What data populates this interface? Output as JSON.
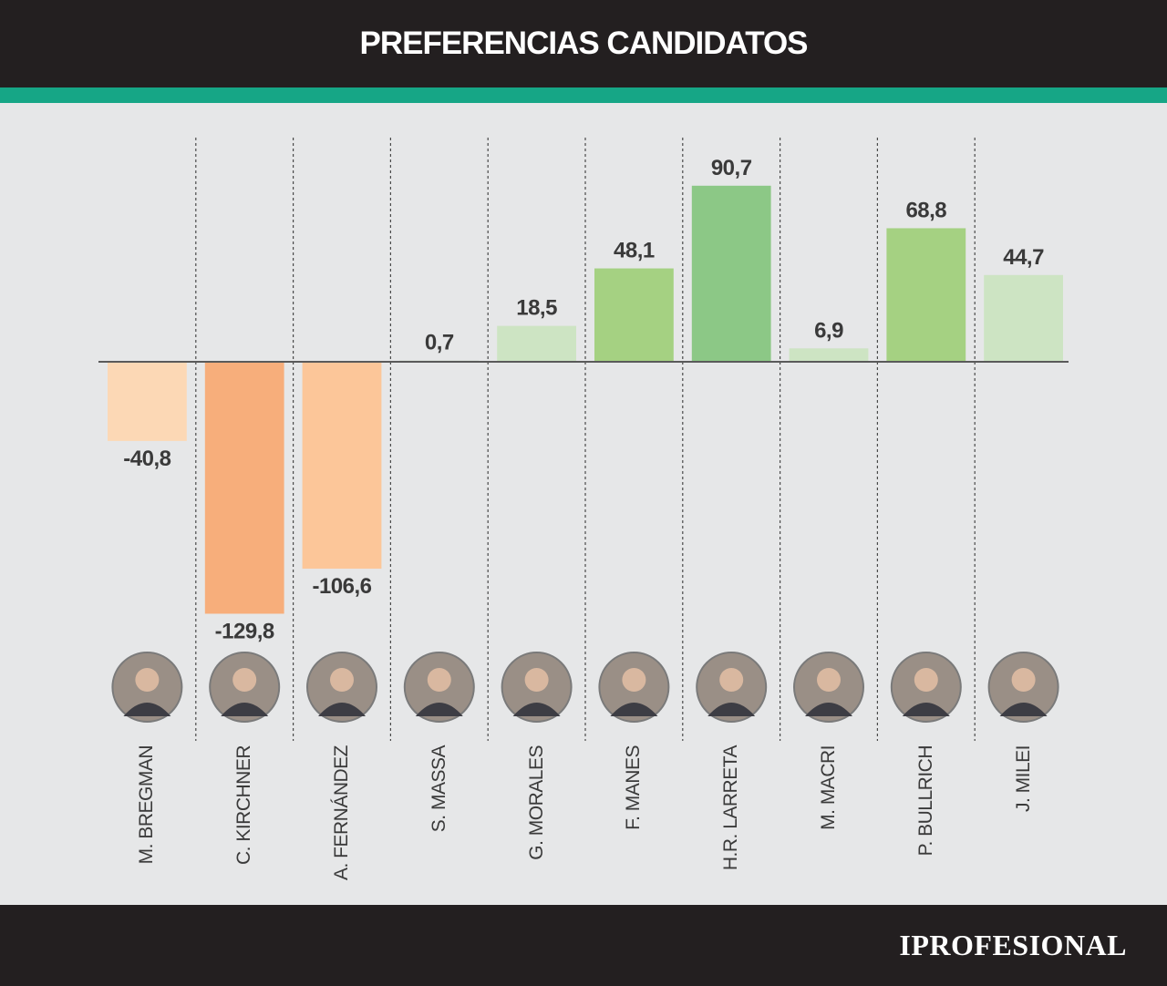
{
  "header": {
    "title": "PREFERENCIAS CANDIDATOS"
  },
  "footer": {
    "brand": "IPROFESIONAL"
  },
  "colors": {
    "header_bg": "#231f20",
    "accent": "#16a686",
    "background": "#e6e7e8",
    "negative_light": "#fcd8b5",
    "negative_mid": "#fcc699",
    "negative_strong": "#f7ae7b",
    "positive_faint": "#d1dccf",
    "positive_light": "#cde4c3",
    "positive_mid": "#a5d182",
    "positive_strong": "#8cc886"
  },
  "candidates": [
    {
      "name": "M. BREGMAN",
      "value": -40.8,
      "label": "-40,8",
      "color": "#fcd8b5",
      "photo_icon": "portrait-bregman-icon"
    },
    {
      "name": "C. KIRCHNER",
      "value": -129.8,
      "label": "-129,8",
      "color": "#f7ae7b",
      "photo_icon": "portrait-kirchner-icon"
    },
    {
      "name": "A. FERNÁNDEZ",
      "value": -106.6,
      "label": "-106,6",
      "color": "#fcc699",
      "photo_icon": "portrait-fernandez-icon"
    },
    {
      "name": "S. MASSA",
      "value": 0.7,
      "label": "0,7",
      "color": "#d1dccf",
      "photo_icon": "portrait-massa-icon"
    },
    {
      "name": "G. MORALES",
      "value": 18.5,
      "label": "18,5",
      "color": "#cde4c3",
      "photo_icon": "portrait-morales-icon"
    },
    {
      "name": "F. MANES",
      "value": 48.1,
      "label": "48,1",
      "color": "#a5d182",
      "photo_icon": "portrait-manes-icon"
    },
    {
      "name": "H.R. LARRETA",
      "value": 90.7,
      "label": "90,7",
      "color": "#8cc886",
      "photo_icon": "portrait-larreta-icon"
    },
    {
      "name": "M. MACRI",
      "value": 6.9,
      "label": "6,9",
      "color": "#cde4c3",
      "photo_icon": "portrait-macri-icon"
    },
    {
      "name": "P. BULLRICH",
      "value": 68.8,
      "label": "68,8",
      "color": "#a5d182",
      "photo_icon": "portrait-bullrich-icon"
    },
    {
      "name": "J. MILEI",
      "value": 44.7,
      "label": "44,7",
      "color": "#cde4c3",
      "photo_icon": "portrait-milei-icon"
    }
  ],
  "chart_data": {
    "type": "bar",
    "title": "PREFERENCIAS CANDIDATOS",
    "categories": [
      "M. BREGMAN",
      "C. KIRCHNER",
      "A. FERNÁNDEZ",
      "S. MASSA",
      "G. MORALES",
      "F. MANES",
      "H.R. LARRETA",
      "M. MACRI",
      "P. BULLRICH",
      "J. MILEI"
    ],
    "values": [
      -40.8,
      -129.8,
      -106.6,
      0.7,
      18.5,
      48.1,
      90.7,
      6.9,
      68.8,
      44.7
    ],
    "data_labels": [
      "-40,8",
      "-129,8",
      "-106,6",
      "0,7",
      "18,5",
      "48,1",
      "90,7",
      "6,9",
      "68,8",
      "44,7"
    ],
    "xlabel": "",
    "ylabel": "",
    "ylim": [
      -129.8,
      90.7
    ],
    "grid": false,
    "legend": "none"
  }
}
